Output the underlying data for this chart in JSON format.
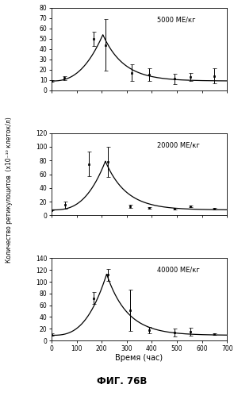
{
  "subplots": [
    {
      "label": "5000 МЕ/кг",
      "ylim": [
        0,
        80
      ],
      "yticks": [
        0,
        10,
        20,
        30,
        40,
        50,
        60,
        70,
        80
      ],
      "data_x": [
        0,
        50,
        168,
        216,
        320,
        390,
        490,
        555,
        650
      ],
      "data_y": [
        9,
        12,
        50,
        44,
        17,
        15,
        11,
        13,
        14
      ],
      "err_y": [
        1,
        2,
        7,
        25,
        8,
        6,
        5,
        4,
        7
      ],
      "curve_peak": 54,
      "curve_peak_t": 205,
      "curve_base": 9,
      "curve_decay": 0.012,
      "curve_rise_exp": 2.5
    },
    {
      "label": "20000 МЕ/кг",
      "ylim": [
        0,
        120
      ],
      "yticks": [
        0,
        20,
        40,
        60,
        80,
        100,
        120
      ],
      "data_x": [
        0,
        55,
        150,
        225,
        315,
        390,
        490,
        555,
        650
      ],
      "data_y": [
        8,
        15,
        75,
        78,
        13,
        11,
        10,
        13,
        10
      ],
      "err_y": [
        1,
        5,
        18,
        22,
        2,
        1,
        1,
        1,
        1
      ],
      "curve_peak": 79,
      "curve_peak_t": 215,
      "curve_base": 8,
      "curve_decay": 0.012,
      "curve_rise_exp": 2.8
    },
    {
      "label": "40000 МЕ/кг",
      "ylim": [
        0,
        140
      ],
      "yticks": [
        0,
        20,
        40,
        60,
        80,
        100,
        120,
        140
      ],
      "data_x": [
        0,
        168,
        225,
        315,
        390,
        490,
        555,
        650
      ],
      "data_y": [
        10,
        72,
        112,
        52,
        18,
        14,
        15,
        11
      ],
      "err_y": [
        2,
        10,
        10,
        35,
        5,
        7,
        7,
        1
      ],
      "curve_peak": 113,
      "curve_peak_t": 220,
      "curve_base": 9,
      "curve_decay": 0.012,
      "curve_rise_exp": 2.8
    }
  ],
  "xlabel": "Время (час)",
  "ylabel_line1": "Количество ретикулоцитов",
  "ylabel_line2": "(х10⁻¹⁰ клеток/л)",
  "fig_title": "ФИГ. 76В",
  "xlim": [
    0,
    700
  ],
  "xticks": [
    0,
    100,
    200,
    300,
    400,
    500,
    600,
    700
  ],
  "line_color": "#000000",
  "marker_color": "#000000",
  "bg_color": "#ffffff"
}
